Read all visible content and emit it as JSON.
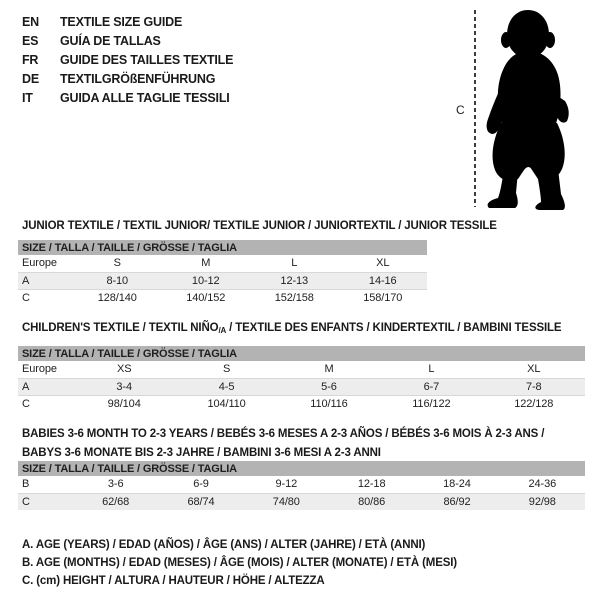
{
  "header": {
    "languages": [
      {
        "code": "EN",
        "label": "TEXTILE SIZE GUIDE"
      },
      {
        "code": "ES",
        "label": "GUÍA DE TALLAS"
      },
      {
        "code": "FR",
        "label": "GUIDE DES TAILLES TEXTILE"
      },
      {
        "code": "DE",
        "label": "TEXTILGRÖßENFÜHRUNG"
      },
      {
        "code": "IT",
        "label": "GUIDA ALLE TAGLIE TESSILI"
      }
    ]
  },
  "figure": {
    "label": "C",
    "description": "toddler-silhouette"
  },
  "tables": [
    {
      "title_lines": [
        [
          {
            "t": "JUNIOR TEXTILE / TEXTIL JUNIOR/ TEXTILE JUNIOR / JUNIORTEXTIL / JUNIOR TESSILE"
          }
        ]
      ],
      "size_header": "SIZE / TALLA / TAILLE / GRÖSSE / TAGLIA",
      "rows": [
        {
          "label": "Europe",
          "values": [
            "S",
            "M",
            "L",
            "XL"
          ],
          "shaded": false
        },
        {
          "label": "A",
          "values": [
            "8-10",
            "10-12",
            "12-13",
            "14-16"
          ],
          "shaded": true
        },
        {
          "label": "C",
          "values": [
            "128/140",
            "140/152",
            "152/158",
            "158/170"
          ],
          "shaded": false
        }
      ]
    },
    {
      "title_lines": [
        [
          {
            "t": "CHILDREN'S TEXTILE / TEXTIL NIÑO"
          },
          {
            "t": "/A",
            "sub": true
          },
          {
            "t": " / TEXTILE DES ENFANTS / KINDERTEXTIL / BAMBINI TESSILE"
          }
        ]
      ],
      "size_header": "SIZE / TALLA / TAILLE / GRÖSSE / TAGLIA",
      "rows": [
        {
          "label": "Europe",
          "values": [
            "XS",
            "S",
            "M",
            "L",
            "XL"
          ],
          "shaded": false
        },
        {
          "label": "A",
          "values": [
            "3-4",
            "4-5",
            "5-6",
            "6-7",
            "7-8"
          ],
          "shaded": true
        },
        {
          "label": "C",
          "values": [
            "98/104",
            "104/110",
            "110/116",
            "116/122",
            "122/128"
          ],
          "shaded": false
        }
      ]
    },
    {
      "title_lines": [
        [
          {
            "t": "BABIES 3-6 MONTH TO 2-3 YEARS / BEBÉS 3-6 MESES A 2-3 AÑOS / BÉBÉS 3-6 MOIS À 2-3 ANS /"
          }
        ],
        [
          {
            "t": "BABYS 3-6 MONATE BIS 2-3 JAHRE / BAMBINI 3-6 MESI A 2-3 ANNI"
          }
        ]
      ],
      "size_header": "SIZE / TALLA / TAILLE / GRÖSSE / TAGLIA",
      "rows": [
        {
          "label": "B",
          "values": [
            "3-6",
            "6-9",
            "9-12",
            "12-18",
            "18-24",
            "24-36"
          ],
          "shaded": false
        },
        {
          "label": "C",
          "values": [
            "62/68",
            "68/74",
            "74/80",
            "80/86",
            "86/92",
            "92/98"
          ],
          "shaded": true
        }
      ]
    }
  ],
  "footnotes": [
    "A. AGE (YEARS) / EDAD (AÑOS) / ÂGE (ANS) / ALTER (JAHRE) / ETÀ (ANNI)",
    "B. AGE (MONTHS) / EDAD (MESES) / ÂGE (MOIS) / ALTER (MONATE) / ETÀ (MESI)",
    "C. (cm) HEIGHT / ALTURA / HAUTEUR / HÖHE / ALTEZZA"
  ],
  "colors": {
    "text": "#1a1a1a",
    "header_bar_gray": "#b3b3b3",
    "shaded_row_gray": "#ededed",
    "silhouette_black": "#000000"
  }
}
